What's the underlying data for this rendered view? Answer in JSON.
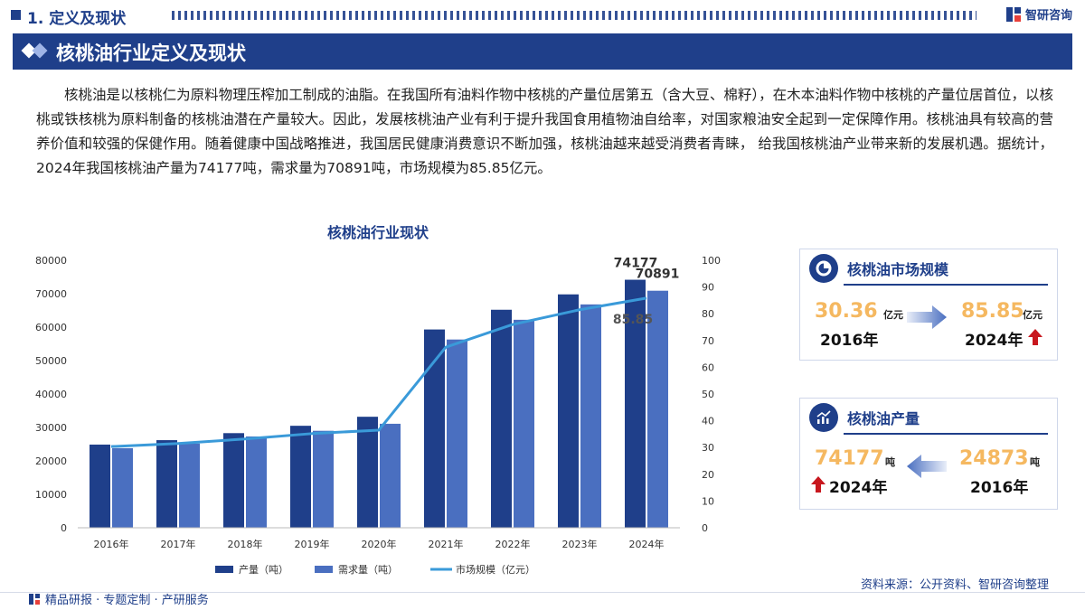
{
  "header": {
    "section_title": "1. 定义及现状",
    "brand": "智研咨询",
    "banner_title": "核桃油行业定义及现状"
  },
  "intro": "核桃油是以核桃仁为原料物理压榨加工制成的油脂。在我国所有油料作物中核桃的产量位居第五（含大豆、棉籽），在木本油料作物中核桃的产量位居首位，以核桃或铁核桃为原料制备的核桃油潜在产量较大。因此，发展核桃油产业有利于提升我国食用植物油自给率，对国家粮油安全起到一定保障作用。核桃油具有较高的营养价值和较强的保健作用。随着健康中国战略推进，我国居民健康消费意识不断加强，核桃油越来越受消费者青睐， 给我国核桃油产业带来新的发展机遇。据统计，2024年我国核桃油产量为74177吨，需求量为70891吨，市场规模为85.85亿元。",
  "chart_data": {
    "type": "bar",
    "title": "核桃油行业现状",
    "categories": [
      "2016年",
      "2017年",
      "2018年",
      "2019年",
      "2020年",
      "2021年",
      "2022年",
      "2023年",
      "2024年"
    ],
    "series": [
      {
        "name": "产量（吨）",
        "kind": "bar",
        "axis": "left",
        "color": "#1f3f8a",
        "values": [
          24873,
          26200,
          28300,
          30500,
          33200,
          59300,
          65200,
          69800,
          74177
        ]
      },
      {
        "name": "需求量（吨）",
        "kind": "bar",
        "axis": "left",
        "color": "#4a6fc0",
        "values": [
          23800,
          25200,
          27300,
          29000,
          31100,
          56300,
          62200,
          66800,
          70891
        ]
      },
      {
        "name": "市场规模（亿元）",
        "kind": "line",
        "axis": "right",
        "color": "#3a9ad9",
        "values": [
          30.36,
          31.5,
          33.2,
          35.2,
          36.5,
          67.5,
          76,
          81.5,
          85.85
        ]
      }
    ],
    "y_left": {
      "min": 0,
      "max": 80000,
      "ticks": [
        "0",
        "10000",
        "20000",
        "30000",
        "40000",
        "50000",
        "60000",
        "70000",
        "80000"
      ]
    },
    "y_right": {
      "min": 0,
      "max": 100,
      "ticks": [
        "0",
        "10",
        "20",
        "30",
        "40",
        "50",
        "60",
        "70",
        "80",
        "90",
        "100"
      ]
    },
    "labels": {
      "production_2024": "74177",
      "demand_2024": "70891",
      "market_2024": "85.85"
    },
    "grid": false,
    "legend_position": "bottom"
  },
  "cards": {
    "market": {
      "title": "核桃油市场规模",
      "from_value": "30.36",
      "from_unit": "亿元",
      "from_year": "2016年",
      "to_value": "85.85",
      "to_unit": "亿元",
      "to_year": "2024年",
      "icon": "pie-chart-icon"
    },
    "production": {
      "title": "核桃油产量",
      "left_value": "74177",
      "left_unit": "吨",
      "left_year": "2024年",
      "right_value": "24873",
      "right_unit": "吨",
      "right_year": "2016年",
      "icon": "trend-chart-icon"
    }
  },
  "footer": {
    "left": "精品研报 · 专题定制 · 产研服务",
    "source": "资料来源：公开资料、智研咨询整理"
  }
}
